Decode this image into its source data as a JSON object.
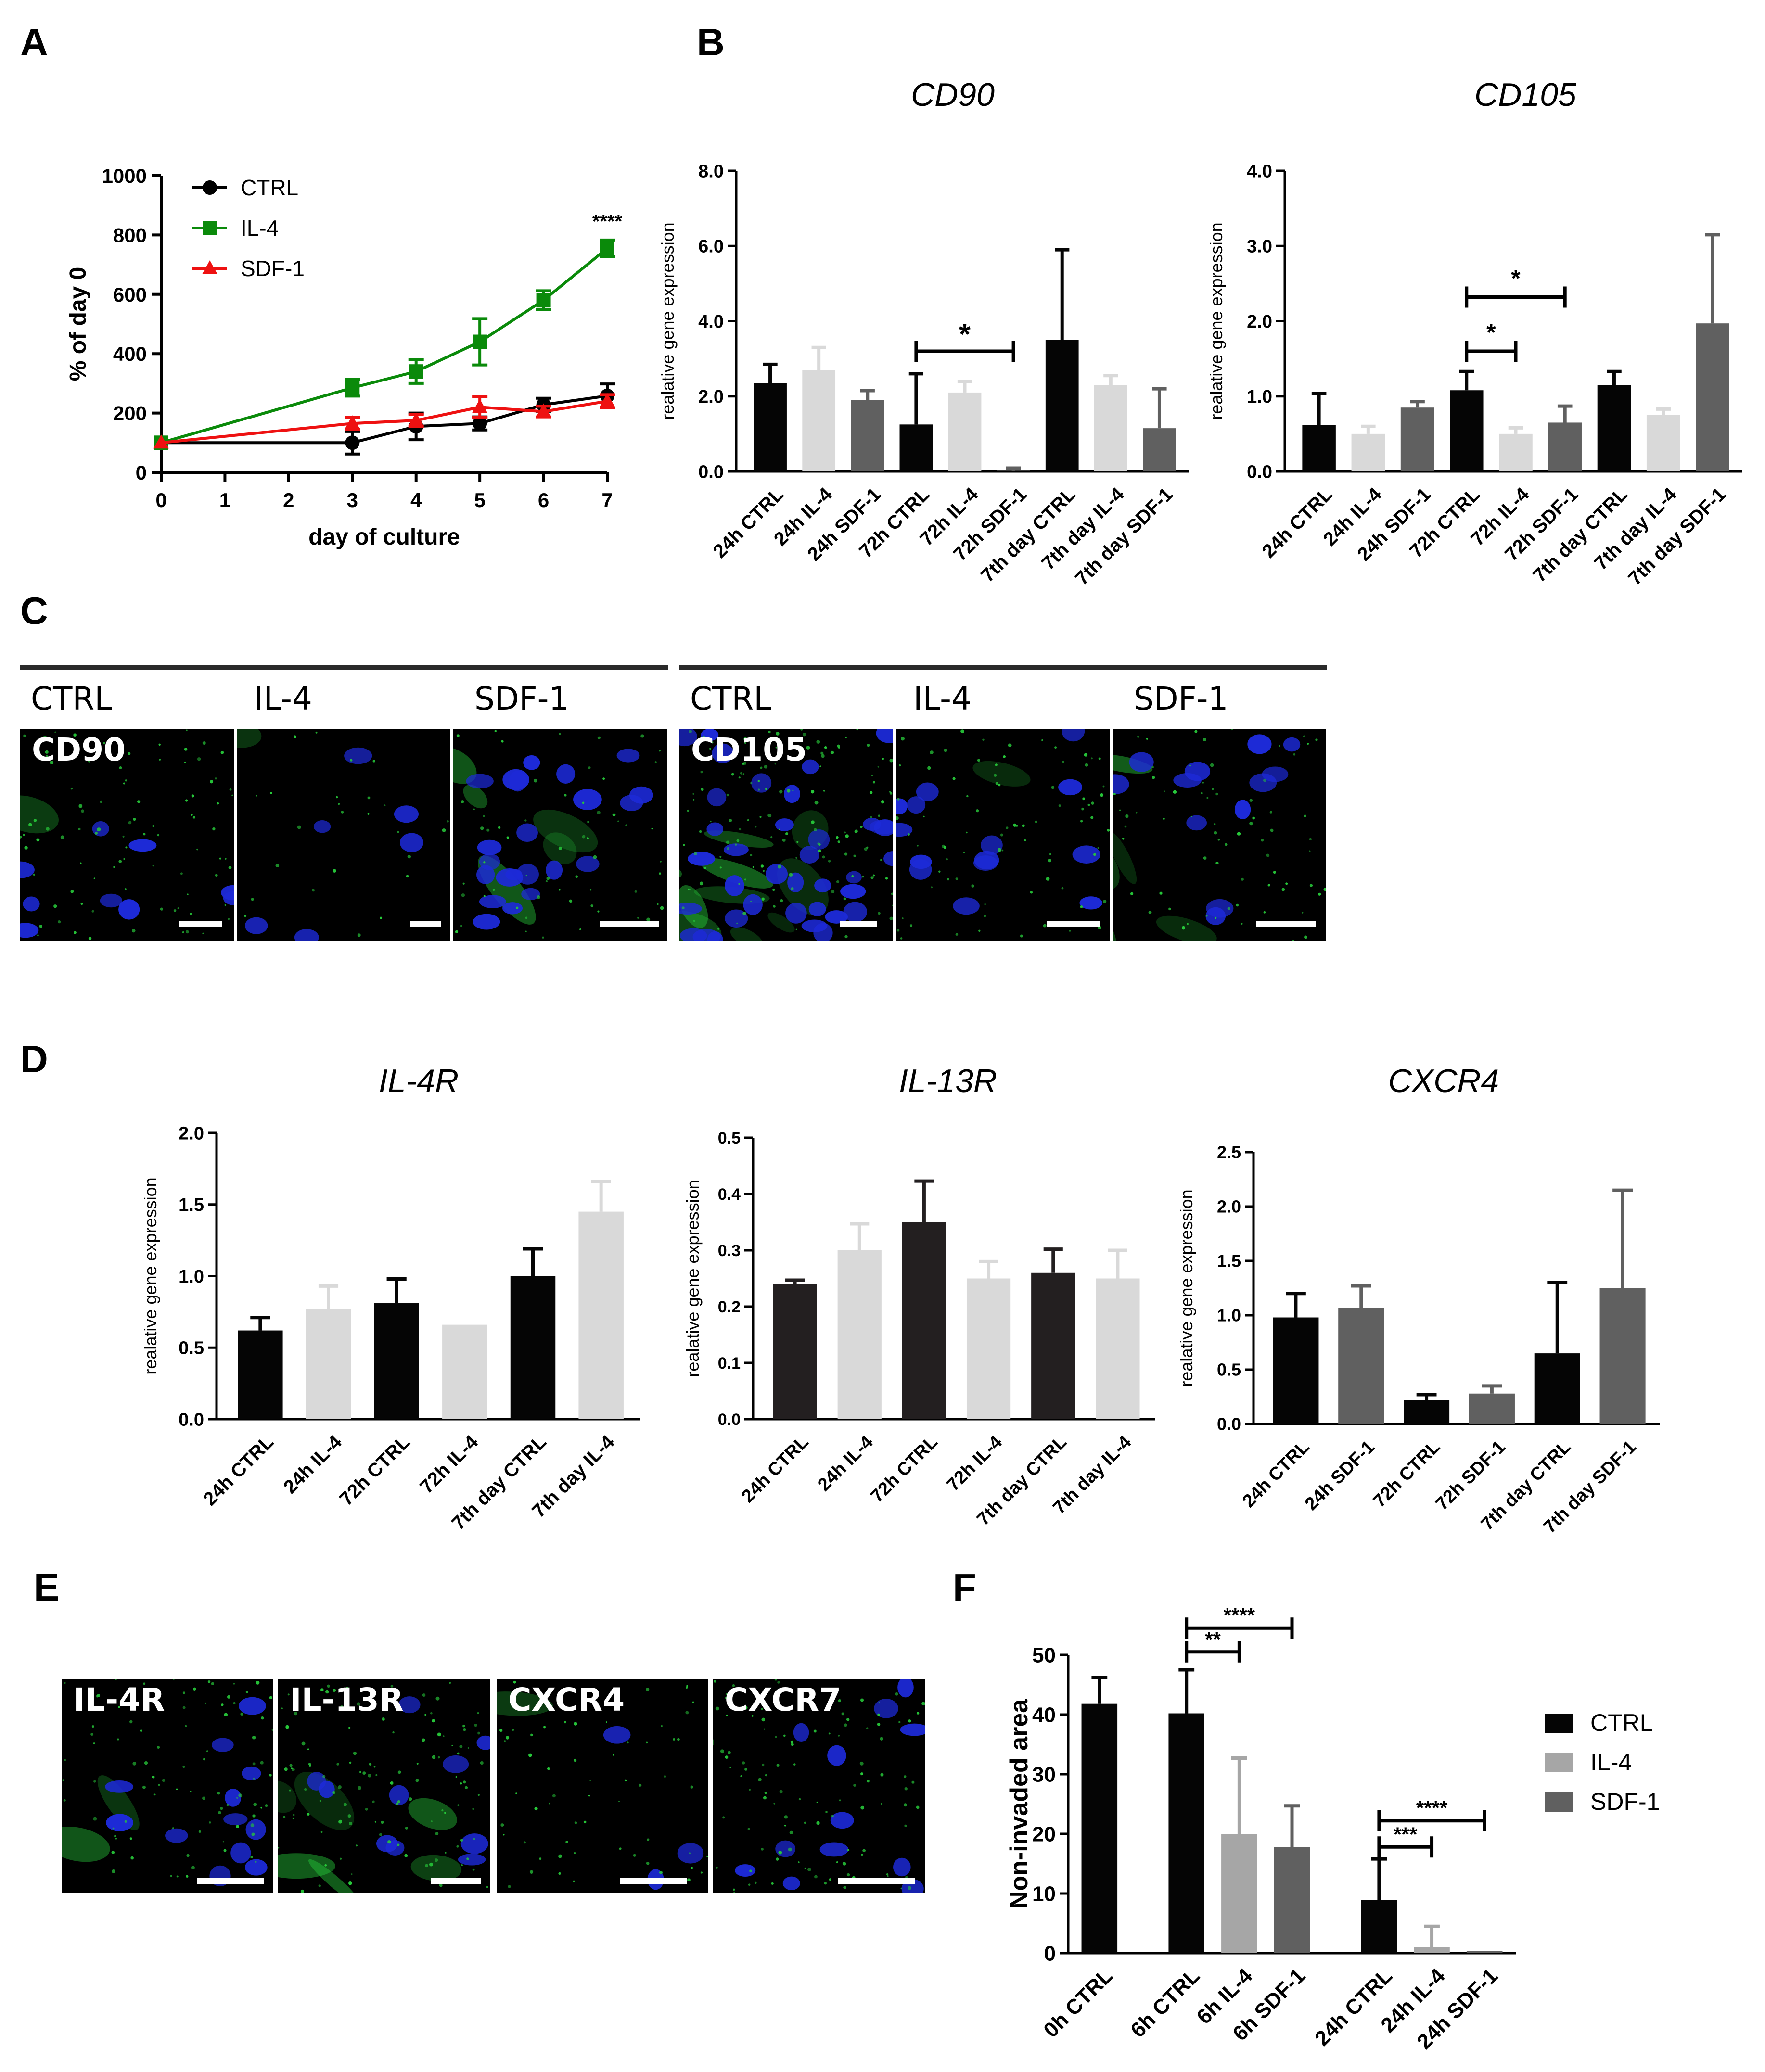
{
  "panel_letters": {
    "a": "A",
    "b": "B",
    "c": "C",
    "d": "D",
    "e": "E",
    "f": "F"
  },
  "colors": {
    "black": "#000000",
    "green": "#0a8a0a",
    "red": "#ee1111",
    "light_gray": "#d9d9d9",
    "mid_gray": "#606060",
    "bar_black": "#050505",
    "bar_dark": "#231f20",
    "fluor_green": "#27c93a",
    "nucleus_blue": "#1d2ad8"
  },
  "chart_data": [
    {
      "id": "A",
      "type": "line",
      "title": "",
      "xlabel": "day of culture",
      "ylabel": "% of day 0",
      "xlim": [
        0,
        7
      ],
      "ylim": [
        0,
        1000
      ],
      "xticks": [
        "0",
        "1",
        "2",
        "3",
        "4",
        "5",
        "6",
        "7"
      ],
      "yticks": [
        "0",
        "200",
        "400",
        "600",
        "800",
        "1000"
      ],
      "legend": "top-left",
      "annotations": [
        {
          "text": "****",
          "x": 7,
          "y": 840
        }
      ],
      "series": [
        {
          "name": "CTRL",
          "color": "#000000",
          "marker": "circle",
          "x": [
            0,
            3,
            4,
            5,
            6,
            7
          ],
          "values": [
            100,
            100,
            155,
            165,
            228,
            258
          ],
          "errors": [
            0,
            38,
            45,
            22,
            22,
            40
          ]
        },
        {
          "name": "IL-4",
          "color": "#0a8a0a",
          "marker": "square",
          "x": [
            0,
            3,
            4,
            5,
            6,
            7
          ],
          "values": [
            100,
            285,
            340,
            440,
            580,
            755
          ],
          "errors": [
            0,
            28,
            40,
            78,
            32,
            28
          ]
        },
        {
          "name": "SDF-1",
          "color": "#ee1111",
          "marker": "triangle",
          "x": [
            0,
            3,
            4,
            5,
            6,
            7
          ],
          "values": [
            100,
            165,
            175,
            220,
            205,
            240
          ],
          "errors": [
            0,
            20,
            20,
            35,
            18,
            22
          ]
        }
      ]
    },
    {
      "id": "B1",
      "type": "bar",
      "title": "CD90",
      "xlabel": "",
      "ylabel": "realative gene expression",
      "ylim": [
        0,
        8
      ],
      "yticks": [
        "0.0",
        "2.0",
        "4.0",
        "6.0",
        "8.0"
      ],
      "categories": [
        "24h CTRL",
        "24h IL-4",
        "24h SDF-1",
        "72h CTRL",
        "72h IL-4",
        "72h SDF-1",
        "7th day CTRL",
        "7th day IL-4",
        "7th day SDF-1"
      ],
      "values": [
        2.35,
        2.7,
        1.9,
        1.25,
        2.1,
        0.02,
        3.5,
        2.3,
        1.15
      ],
      "errors": [
        0.5,
        0.6,
        0.25,
        1.35,
        0.3,
        0.07,
        2.4,
        0.25,
        1.05
      ],
      "bar_colors": [
        "#050505",
        "#d9d9d9",
        "#606060",
        "#050505",
        "#d9d9d9",
        "#606060",
        "#050505",
        "#d9d9d9",
        "#606060"
      ],
      "brackets": [
        {
          "from": 3,
          "to": 5,
          "y": 3.2,
          "text": "*"
        }
      ]
    },
    {
      "id": "B2",
      "type": "bar",
      "title": "CD105",
      "xlabel": "",
      "ylabel": "realative gene expression",
      "ylim": [
        0,
        4
      ],
      "yticks": [
        "0.0",
        "1.0",
        "2.0",
        "3.0",
        "4.0"
      ],
      "categories": [
        "24h CTRL",
        "24h IL-4",
        "24h SDF-1",
        "72h CTRL",
        "72h IL-4",
        "72h SDF-1",
        "7th day CTRL",
        "7th day IL-4",
        "7th day SDF-1"
      ],
      "values": [
        0.62,
        0.5,
        0.85,
        1.08,
        0.5,
        0.65,
        1.15,
        0.75,
        1.97
      ],
      "errors": [
        0.42,
        0.1,
        0.08,
        0.25,
        0.08,
        0.22,
        0.18,
        0.08,
        1.18
      ],
      "bar_colors": [
        "#050505",
        "#d9d9d9",
        "#606060",
        "#050505",
        "#d9d9d9",
        "#606060",
        "#050505",
        "#d9d9d9",
        "#606060"
      ],
      "brackets": [
        {
          "from": 3,
          "to": 4,
          "y": 1.6,
          "text": "*"
        },
        {
          "from": 3,
          "to": 5,
          "y": 2.32,
          "text": "*"
        }
      ]
    },
    {
      "id": "D1",
      "type": "bar",
      "title": "IL-4R",
      "xlabel": "",
      "ylabel": "realative gene expression",
      "ylim": [
        0,
        2
      ],
      "yticks": [
        "0.0",
        "0.5",
        "1.0",
        "1.5",
        "2.0"
      ],
      "categories": [
        "24h CTRL",
        "24h IL-4",
        "72h CTRL",
        "72h IL-4",
        "7th day CTRL",
        "7th day IL-4"
      ],
      "values": [
        0.62,
        0.77,
        0.81,
        0.66,
        1.0,
        1.45
      ],
      "errors": [
        0.09,
        0.16,
        0.17,
        0.0,
        0.19,
        0.21
      ],
      "bar_colors": [
        "#050505",
        "#d9d9d9",
        "#050505",
        "#d9d9d9",
        "#050505",
        "#d9d9d9"
      ],
      "brackets": []
    },
    {
      "id": "D2",
      "type": "bar",
      "title": "IL-13R",
      "xlabel": "",
      "ylabel": "realative gene expression",
      "ylim": [
        0,
        0.5
      ],
      "yticks": [
        "0.0",
        "0.1",
        "0.2",
        "0.3",
        "0.4",
        "0.5"
      ],
      "categories": [
        "24h CTRL",
        "24h IL-4",
        "72h CTRL",
        "72h IL-4",
        "7th day CTRL",
        "7th day IL-4"
      ],
      "values": [
        0.24,
        0.3,
        0.35,
        0.25,
        0.26,
        0.25
      ],
      "errors": [
        0.007,
        0.047,
        0.073,
        0.03,
        0.042,
        0.05
      ],
      "bar_colors": [
        "#231f20",
        "#d9d9d9",
        "#231f20",
        "#d9d9d9",
        "#231f20",
        "#d9d9d9"
      ],
      "brackets": []
    },
    {
      "id": "D3",
      "type": "bar",
      "title": "CXCR4",
      "xlabel": "",
      "ylabel": "realative gene expression",
      "ylim": [
        0,
        2.5
      ],
      "yticks": [
        "0.0",
        "0.5",
        "1.0",
        "1.5",
        "2.0",
        "2.5"
      ],
      "categories": [
        "24h CTRL",
        "24h SDF-1",
        "72h CTRL",
        "72h SDF-1",
        "7th day CTRL",
        "7th day SDF-1"
      ],
      "values": [
        0.98,
        1.07,
        0.22,
        0.28,
        0.65,
        1.25
      ],
      "errors": [
        0.22,
        0.2,
        0.05,
        0.07,
        0.65,
        0.9
      ],
      "bar_colors": [
        "#050505",
        "#606060",
        "#050505",
        "#606060",
        "#050505",
        "#606060"
      ],
      "brackets": []
    },
    {
      "id": "F",
      "type": "bar",
      "title": "",
      "xlabel": "",
      "ylabel": "Non-invaded area",
      "ylim": [
        0,
        50
      ],
      "yticks": [
        "0",
        "10",
        "20",
        "30",
        "40",
        "50"
      ],
      "legend": "right",
      "legend_entries": [
        {
          "name": "CTRL",
          "color": "#050505"
        },
        {
          "name": "IL-4",
          "color": "#a6a6a6"
        },
        {
          "name": "SDF-1",
          "color": "#606060"
        }
      ],
      "categories": [
        "0h CTRL",
        "6h CTRL",
        "6h IL-4",
        "6h SDF-1",
        "24h CTRL",
        "24h IL-4",
        "24h SDF-1"
      ],
      "values": [
        41.8,
        40.2,
        20.0,
        17.8,
        8.9,
        1.0,
        0.4
      ],
      "errors": [
        4.4,
        7.3,
        12.7,
        6.9,
        6.9,
        3.5,
        0.0
      ],
      "bar_colors": [
        "#050505",
        "#050505",
        "#a6a6a6",
        "#606060",
        "#050505",
        "#a6a6a6",
        "#606060"
      ],
      "brackets": [
        {
          "from": 1,
          "to": 2,
          "y": 50.5,
          "text": "**"
        },
        {
          "from": 1,
          "to": 3,
          "y": 54.5,
          "text": "****"
        },
        {
          "from": 4,
          "to": 5,
          "y": 17.8,
          "text": "***"
        },
        {
          "from": 4,
          "to": 6,
          "y": 22.2,
          "text": "****"
        }
      ]
    }
  ],
  "panel_c": {
    "group1": {
      "conditions": [
        "CTRL",
        "IL-4",
        "SDF-1"
      ],
      "stain": "CD90"
    },
    "group2": {
      "conditions": [
        "CTRL",
        "IL-4",
        "SDF-1"
      ],
      "stain": "CD105"
    }
  },
  "panel_e": {
    "images": [
      "IL-4R",
      "IL-13R",
      "CXCR4",
      "CXCR7"
    ]
  }
}
